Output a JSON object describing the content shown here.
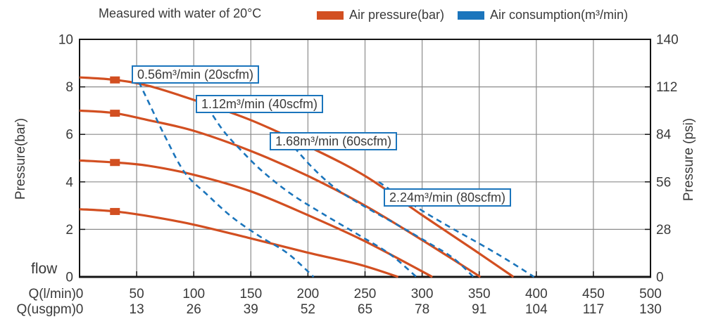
{
  "colors": {
    "pressure": "#d24f21",
    "consumption": "#1b75bc",
    "grid": "#8c8c8c",
    "axis": "#141414",
    "text": "#3a3a3a",
    "label_box_border": "#1b75bc",
    "background": "#ffffff"
  },
  "chart_data": {
    "type": "line",
    "title": "Measured with water of 20°C",
    "legend": [
      {
        "label": "Air pressure(bar)",
        "color": "#d24f21",
        "line_style": "solid"
      },
      {
        "label": "Air consumption(m³/min)",
        "color": "#1b75bc",
        "line_style": "dashed"
      }
    ],
    "legend_position": "top",
    "grid": {
      "visible": true,
      "x_step_lmin": 50,
      "y_step_bar": 2
    },
    "x_axis": {
      "title_row1": "Q(l/min)",
      "title_row2": "Q(usgpm)",
      "corner_label": "flow",
      "range_lmin": [
        0,
        500
      ],
      "ticks_lmin": [
        0,
        50,
        100,
        150,
        200,
        250,
        300,
        350,
        400,
        450,
        500
      ],
      "ticks_usgpm": [
        0,
        13,
        26,
        39,
        52,
        65,
        78,
        91,
        104,
        117,
        130
      ]
    },
    "y_axis_left": {
      "title": "Pressure(bar)",
      "range": [
        0,
        10
      ],
      "ticks": [
        0,
        2,
        4,
        6,
        8,
        10
      ]
    },
    "y_axis_right": {
      "title": "Pressure (psi)",
      "range": [
        0,
        140
      ],
      "ticks": [
        0,
        28,
        56,
        84,
        112,
        140
      ]
    },
    "series": [
      {
        "name": "pressure-curve-1",
        "kind": "air-pressure",
        "dashed": false,
        "marker_q": 31,
        "points": [
          [
            0,
            8.4
          ],
          [
            30,
            8.3
          ],
          [
            60,
            8.05
          ],
          [
            100,
            7.45
          ],
          [
            150,
            6.6
          ],
          [
            200,
            5.5
          ],
          [
            250,
            4.25
          ],
          [
            300,
            2.6
          ],
          [
            345,
            1.15
          ],
          [
            380,
            0
          ]
        ]
      },
      {
        "name": "pressure-curve-2",
        "kind": "air-pressure",
        "dashed": false,
        "marker_q": 31,
        "points": [
          [
            0,
            7.0
          ],
          [
            30,
            6.9
          ],
          [
            60,
            6.6
          ],
          [
            100,
            6.15
          ],
          [
            150,
            5.3
          ],
          [
            200,
            4.25
          ],
          [
            250,
            3.0
          ],
          [
            300,
            1.55
          ],
          [
            351,
            0
          ]
        ]
      },
      {
        "name": "pressure-curve-3",
        "kind": "air-pressure",
        "dashed": false,
        "marker_q": 31,
        "points": [
          [
            0,
            4.9
          ],
          [
            30,
            4.82
          ],
          [
            60,
            4.68
          ],
          [
            100,
            4.3
          ],
          [
            150,
            3.6
          ],
          [
            200,
            2.6
          ],
          [
            250,
            1.5
          ],
          [
            309,
            0
          ]
        ]
      },
      {
        "name": "pressure-curve-4",
        "kind": "air-pressure",
        "dashed": false,
        "marker_q": 31,
        "points": [
          [
            0,
            2.85
          ],
          [
            30,
            2.76
          ],
          [
            60,
            2.56
          ],
          [
            100,
            2.2
          ],
          [
            150,
            1.62
          ],
          [
            200,
            1.02
          ],
          [
            245,
            0.52
          ],
          [
            279,
            0
          ]
        ]
      },
      {
        "name": "consumption-curve-1",
        "kind": "air-consumption",
        "dashed": true,
        "points": [
          [
            52,
            8.2
          ],
          [
            62,
            7.2
          ],
          [
            75,
            5.9
          ],
          [
            92,
            4.4
          ],
          [
            112,
            3.45
          ],
          [
            134,
            2.5
          ],
          [
            158,
            1.7
          ],
          [
            182,
            1.0
          ],
          [
            205,
            0
          ]
        ]
      },
      {
        "name": "consumption-curve-2",
        "kind": "air-consumption",
        "dashed": true,
        "points": [
          [
            112,
            7.15
          ],
          [
            126,
            6.15
          ],
          [
            142,
            5.3
          ],
          [
            160,
            4.45
          ],
          [
            185,
            3.5
          ],
          [
            215,
            2.6
          ],
          [
            245,
            1.75
          ],
          [
            272,
            0.95
          ],
          [
            295,
            0
          ]
        ]
      },
      {
        "name": "consumption-curve-3",
        "kind": "air-consumption",
        "dashed": true,
        "points": [
          [
            188,
            5.45
          ],
          [
            205,
            4.55
          ],
          [
            225,
            3.7
          ],
          [
            250,
            2.95
          ],
          [
            278,
            2.2
          ],
          [
            305,
            1.45
          ],
          [
            327,
            0.8
          ],
          [
            345,
            0
          ]
        ]
      },
      {
        "name": "consumption-curve-4",
        "kind": "air-consumption",
        "dashed": true,
        "points": [
          [
            262,
            4.0
          ],
          [
            282,
            3.35
          ],
          [
            303,
            2.7
          ],
          [
            326,
            2.05
          ],
          [
            352,
            1.35
          ],
          [
            375,
            0.7
          ],
          [
            398,
            0
          ]
        ]
      }
    ],
    "curve_labels": [
      {
        "text": "0.56m³/min (20scfm)",
        "q": 45.6,
        "bar": 8.9
      },
      {
        "text": "1.12m³/min (40scfm)",
        "q": 101.7,
        "bar": 7.66
      },
      {
        "text": "1.68m³/min (60scfm)",
        "q": 166.5,
        "bar": 6.09
      },
      {
        "text": "2.24m³/min (80scfm)",
        "q": 266.3,
        "bar": 3.73
      }
    ]
  }
}
